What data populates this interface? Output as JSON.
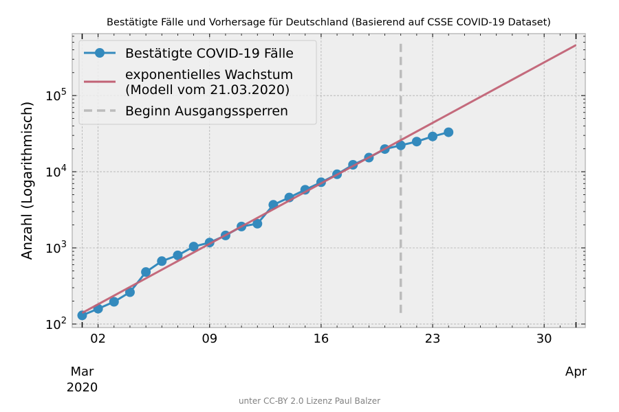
{
  "chart_data": {
    "type": "line",
    "title": "Bestätigte Fälle und Vorhersage für Deutschland (Basierend auf CSSE COVID-19 Dataset)",
    "xlabel": "",
    "ylabel": "Anzahl (Logarithmisch)",
    "yscale": "log",
    "ylim": [
      90,
      650000
    ],
    "xlim": [
      "2020-02-29T09:00",
      "2020-04-01T14:00"
    ],
    "y_ticks": [
      {
        "base": "10",
        "exp": "2",
        "value": 100
      },
      {
        "base": "10",
        "exp": "3",
        "value": 1000
      },
      {
        "base": "10",
        "exp": "4",
        "value": 10000
      },
      {
        "base": "10",
        "exp": "5",
        "value": 100000
      }
    ],
    "x_ticks": [
      {
        "date": "2020-03-02",
        "label": "02"
      },
      {
        "date": "2020-03-09",
        "label": "09"
      },
      {
        "date": "2020-03-16",
        "label": "16"
      },
      {
        "date": "2020-03-23",
        "label": "23"
      },
      {
        "date": "2020-03-30",
        "label": "30"
      }
    ],
    "x_major_ticks": [
      {
        "date": "2020-03-01",
        "label_line1": "Mar",
        "label_line2": "2020"
      },
      {
        "date": "2020-04-01",
        "label_line1": "Apr",
        "label_line2": ""
      }
    ],
    "series": [
      {
        "name": "Bestätigte COVID-19 Fälle",
        "kind": "line-marker",
        "color": "#348abd",
        "x": [
          "2020-03-01",
          "2020-03-02",
          "2020-03-03",
          "2020-03-04",
          "2020-03-05",
          "2020-03-06",
          "2020-03-07",
          "2020-03-08",
          "2020-03-09",
          "2020-03-10",
          "2020-03-11",
          "2020-03-12",
          "2020-03-13",
          "2020-03-14",
          "2020-03-15",
          "2020-03-16",
          "2020-03-17",
          "2020-03-18",
          "2020-03-19",
          "2020-03-20",
          "2020-03-21",
          "2020-03-22",
          "2020-03-23",
          "2020-03-24"
        ],
        "values": [
          130,
          159,
          196,
          262,
          482,
          670,
          799,
          1040,
          1176,
          1457,
          1908,
          2078,
          3675,
          4585,
          5795,
          7272,
          9257,
          12327,
          15320,
          19848,
          22213,
          24873,
          29056,
          32986
        ]
      },
      {
        "name": "exponentielles Wachstum\n(Modell vom 21.03.2020)",
        "kind": "line",
        "color": "#c16275",
        "x": [
          "2020-03-01",
          "2020-04-01"
        ],
        "values": [
          140,
          460000
        ]
      },
      {
        "name": "Beginn Ausgangssperren",
        "kind": "vline-dashed",
        "color": "#bcbcbc",
        "x": "2020-03-21",
        "y_range": [
          140,
          480000
        ]
      }
    ],
    "legend_position": "top-left",
    "grid": true
  },
  "credit": "unter CC-BY 2.0 Lizenz Paul Balzer"
}
